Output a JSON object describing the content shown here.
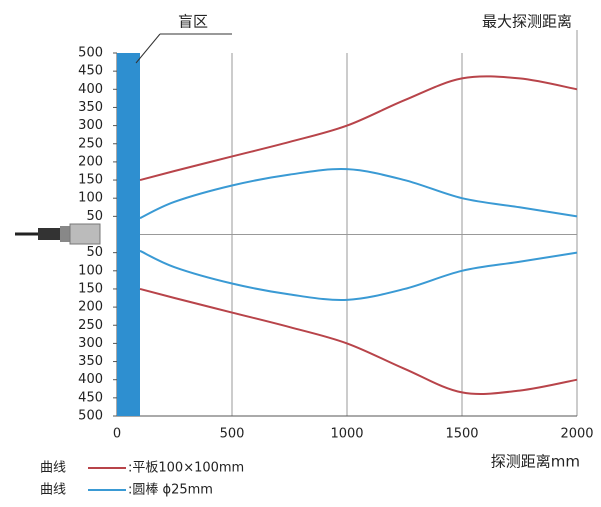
{
  "chart_data": {
    "type": "line",
    "title": "最大探测距离",
    "x_label": "探测距离mm",
    "blind_zone": {
      "label": "盲区",
      "range": [
        0,
        100
      ],
      "color": "#2e8fd0"
    },
    "x": [
      100,
      250,
      500,
      750,
      1000,
      1250,
      1500,
      1750,
      2000
    ],
    "series": [
      {
        "name": ":平板100×100mm",
        "color": "#b8444a",
        "values": [
          150,
          175,
          215,
          255,
          300,
          370,
          430,
          430,
          400
        ],
        "lower_values": [
          -150,
          -175,
          -215,
          -255,
          -300,
          -370,
          -435,
          -430,
          -400
        ]
      },
      {
        "name": ":圆棒 ɸ25mm",
        "color": "#3a9ad4",
        "values": [
          45,
          90,
          135,
          165,
          180,
          150,
          100,
          75,
          50
        ],
        "lower_values": [
          -45,
          -90,
          -135,
          -165,
          -180,
          -150,
          -100,
          -75,
          -50
        ]
      }
    ],
    "legend_prefix": "曲线",
    "xlim": [
      0,
      2000
    ],
    "xticks": [
      0,
      500,
      1000,
      1500,
      2000
    ],
    "ylim": [
      -500,
      500
    ],
    "yticks": [
      500,
      450,
      400,
      350,
      300,
      250,
      200,
      150,
      100,
      50,
      {
        "value": -50,
        "label": "50"
      },
      {
        "value": -100,
        "label": "100"
      },
      {
        "value": -150,
        "label": "150"
      },
      {
        "value": -200,
        "label": "200"
      },
      {
        "value": -250,
        "label": "250"
      },
      {
        "value": -300,
        "label": "300"
      },
      {
        "value": -350,
        "label": "350"
      },
      {
        "value": -400,
        "label": "400"
      },
      {
        "value": -450,
        "label": "450"
      },
      {
        "value": -500,
        "label": "500"
      }
    ]
  }
}
